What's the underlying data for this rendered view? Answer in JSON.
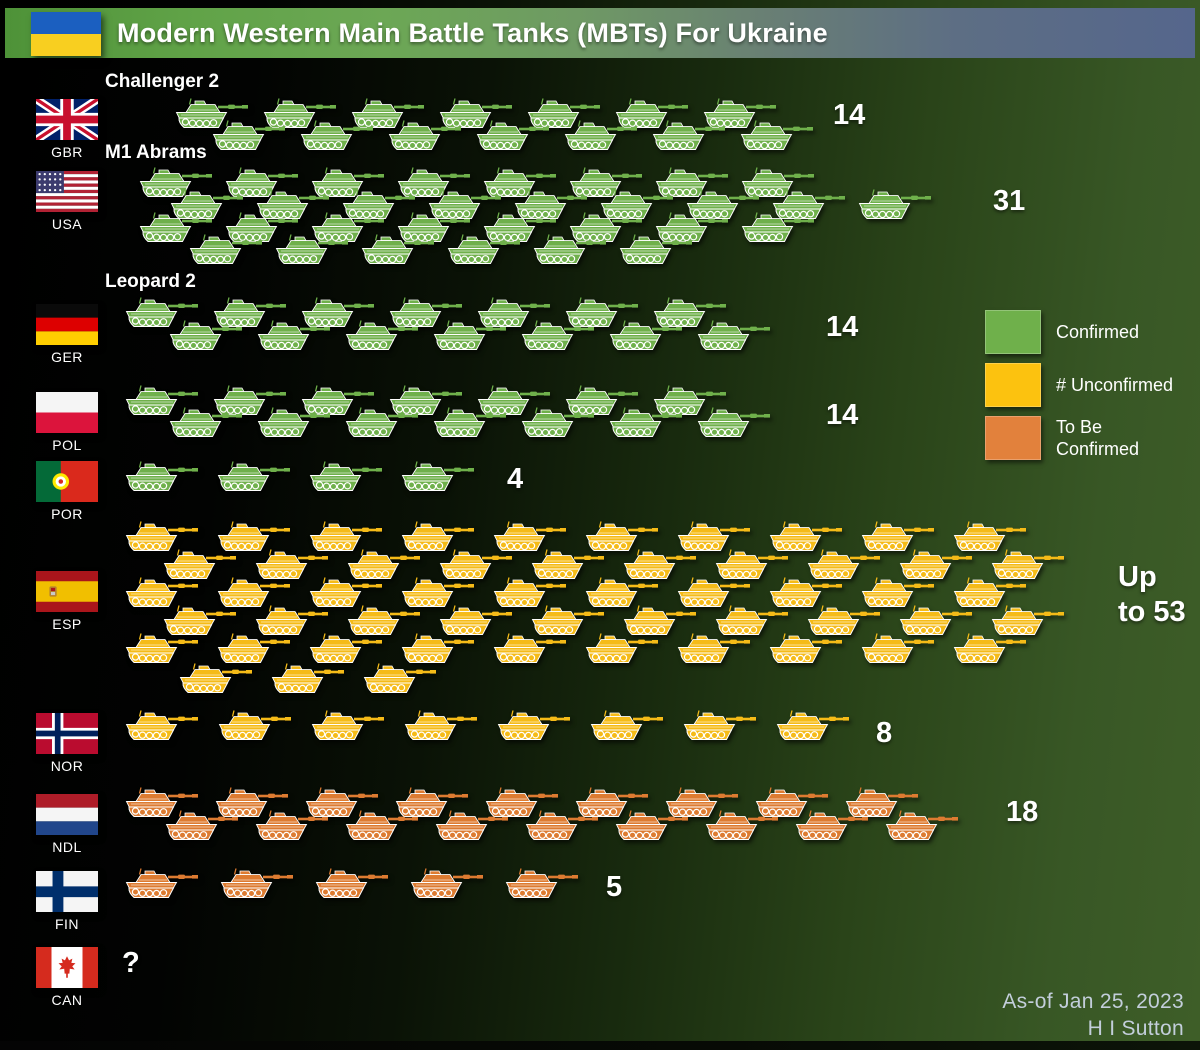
{
  "title": "Modern Western Main Battle Tanks (MBTs) For Ukraine",
  "legend": {
    "items": [
      {
        "label": "Confirmed",
        "color": "#6fb04b"
      },
      {
        "label": "# Unconfirmed",
        "color": "#fcc20f"
      },
      {
        "label": "To Be Confirmed",
        "color": "#e2813c"
      }
    ]
  },
  "footer": {
    "as_of": "As-of Jan 25, 2023",
    "author": "H I Sutton"
  },
  "status_colors": {
    "confirmed": "#6fb04b",
    "unconfirmed": "#f5bb18",
    "to_be_confirmed": "#dd7b31"
  },
  "countries": [
    {
      "code": "GBR",
      "model": "Challenger 2",
      "count": "14",
      "status": "confirmed",
      "rows": [
        7,
        7
      ]
    },
    {
      "code": "USA",
      "model": "M1 Abrams",
      "count": "31",
      "status": "confirmed",
      "rows": [
        8,
        9,
        8,
        6
      ]
    },
    {
      "code": "GER",
      "model": "Leopard 2",
      "count": "14",
      "status": "confirmed",
      "rows": [
        7,
        7
      ]
    },
    {
      "code": "POL",
      "count": "14",
      "status": "confirmed",
      "rows": [
        7,
        7
      ]
    },
    {
      "code": "POR",
      "count": "4",
      "status": "confirmed",
      "rows": [
        4
      ]
    },
    {
      "code": "ESP",
      "count": "Up\nto 53",
      "status": "unconfirmed",
      "rows": [
        10,
        10,
        10,
        10,
        10,
        3
      ]
    },
    {
      "code": "NOR",
      "count": "8",
      "status": "unconfirmed",
      "rows": [
        8
      ]
    },
    {
      "code": "NDL",
      "count": "18",
      "status": "to_be_confirmed",
      "rows": [
        9,
        9
      ]
    },
    {
      "code": "FIN",
      "count": "5",
      "status": "to_be_confirmed",
      "rows": [
        5
      ]
    },
    {
      "code": "CAN",
      "count": "?",
      "status": "unknown",
      "rows": []
    }
  ],
  "chart_data": {
    "type": "pictogram",
    "title": "Modern Western Main Battle Tanks (MBTs) For Ukraine",
    "unit": "tanks",
    "icon": "tank",
    "as_of_label": "As-of Jan 25, 2023",
    "author": "H I Sutton",
    "legend_position": "right",
    "legend": [
      "Confirmed",
      "# Unconfirmed",
      "To Be Confirmed"
    ],
    "items": [
      {
        "country": "GBR",
        "model": "Challenger 2",
        "count": 14,
        "count_label": "14",
        "status": "Confirmed"
      },
      {
        "country": "USA",
        "model": "M1 Abrams",
        "count": 31,
        "count_label": "31",
        "status": "Confirmed"
      },
      {
        "country": "GER",
        "model": "Leopard 2",
        "count": 14,
        "count_label": "14",
        "status": "Confirmed"
      },
      {
        "country": "POL",
        "count": 14,
        "count_label": "14",
        "status": "Confirmed"
      },
      {
        "country": "POR",
        "count": 4,
        "count_label": "4",
        "status": "Confirmed"
      },
      {
        "country": "ESP",
        "count": 53,
        "count_label": "Up to 53",
        "status": "# Unconfirmed"
      },
      {
        "country": "NOR",
        "count": 8,
        "count_label": "8",
        "status": "# Unconfirmed"
      },
      {
        "country": "NDL",
        "count": 18,
        "count_label": "18",
        "status": "To Be Confirmed"
      },
      {
        "country": "FIN",
        "count": 5,
        "count_label": "5",
        "status": "To Be Confirmed"
      },
      {
        "country": "CAN",
        "count": null,
        "count_label": "?",
        "status": "Unknown"
      }
    ]
  }
}
